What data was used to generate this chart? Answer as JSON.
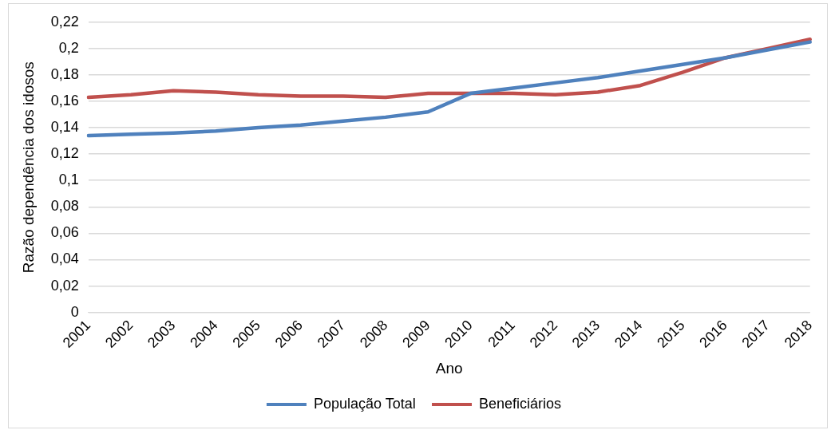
{
  "chart_data": {
    "type": "line",
    "xlabel": "Ano",
    "ylabel": "Razão dependência dos idosos",
    "categories": [
      "2001",
      "2002",
      "2003",
      "2004",
      "2005",
      "2006",
      "2007",
      "2008",
      "2009",
      "2010",
      "2011",
      "2012",
      "2013",
      "2014",
      "2015",
      "2016",
      "2017",
      "2018"
    ],
    "series": [
      {
        "name": "População Total",
        "color": "#4f81bd",
        "values": [
          0.134,
          0.135,
          0.136,
          0.1375,
          0.14,
          0.142,
          0.145,
          0.148,
          0.152,
          0.166,
          0.17,
          0.174,
          0.178,
          0.183,
          0.188,
          0.193,
          0.199,
          0.205
        ]
      },
      {
        "name": "Beneficiários",
        "color": "#c0504d",
        "values": [
          0.163,
          0.165,
          0.168,
          0.167,
          0.165,
          0.164,
          0.164,
          0.163,
          0.166,
          0.166,
          0.166,
          0.165,
          0.167,
          0.172,
          0.182,
          0.193,
          0.2,
          0.207
        ]
      }
    ],
    "ylim": [
      0,
      0.22
    ],
    "yticks": [
      0,
      {
        "value": 0.02,
        "label": "0,02"
      },
      {
        "value": 0.04,
        "label": "0,04"
      },
      {
        "value": 0.06,
        "label": "0,06"
      },
      {
        "value": 0.08,
        "label": "0,08"
      },
      {
        "value": 0.1,
        "label": "0,1"
      },
      {
        "value": 0.12,
        "label": "0,12"
      },
      {
        "value": 0.14,
        "label": "0,14"
      },
      {
        "value": 0.16,
        "label": "0,16"
      },
      {
        "value": 0.18,
        "label": "0,18"
      },
      {
        "value": 0.2,
        "label": "0,2"
      },
      {
        "value": 0.22,
        "label": "0,22"
      }
    ],
    "grid": "y",
    "legend": "bottom",
    "marker": "none",
    "line_style": "solid"
  }
}
